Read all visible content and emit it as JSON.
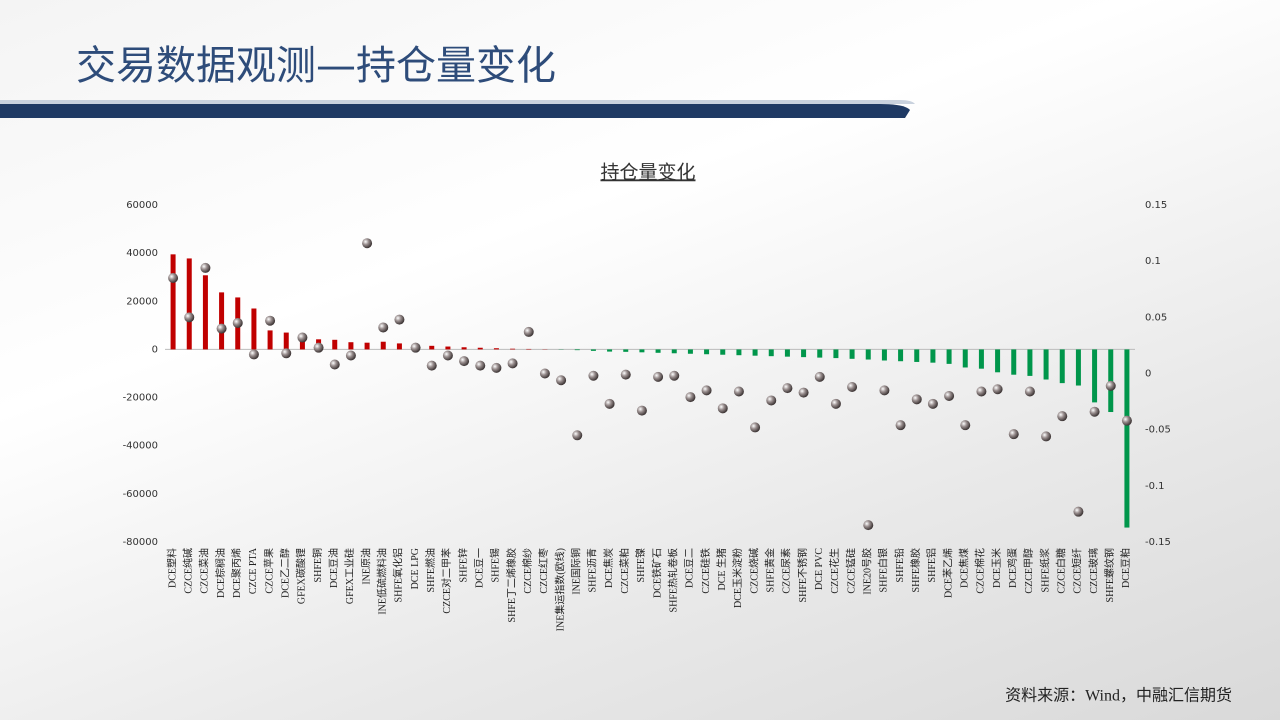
{
  "title": "交易数据观测—持仓量变化",
  "source": "资料来源：Wind，中融汇信期货",
  "chart_data": {
    "type": "bar",
    "title": "持仓量变化",
    "categories": [
      "DCE塑料",
      "CZCE纯碱",
      "CZCE菜油",
      "DCE棕榈油",
      "DCE聚丙烯",
      "CZCE PTA",
      "CZCE苹果",
      "DCE乙二醇",
      "GFEX碳酸锂",
      "SHFE铜",
      "DCE豆油",
      "GFEX工业硅",
      "INE原油",
      "INE低硫燃料油",
      "SHFE氧化铝",
      "DCE LPG",
      "SHFE燃油",
      "CZCE对二甲苯",
      "SHFE锌",
      "DCE豆一",
      "SHFE锡",
      "SHFE丁二烯橡胶",
      "CZCE棉纱",
      "CZCE红枣",
      "INE集运指数(欧线)",
      "INE国际铜",
      "SHFE沥青",
      "DCE焦炭",
      "CZCE菜粕",
      "SHFE镍",
      "DCE铁矿石",
      "SHFE热轧卷板",
      "DCE豆二",
      "CZCE硅铁",
      "DCE 生猪",
      "DCE玉米淀粉",
      "CZCE烧碱",
      "SHFE黄金",
      "CZCE尿素",
      "SHFE不锈钢",
      "DCE PVC",
      "CZCE花生",
      "CZCE锰硅",
      "INE20号胶",
      "SHFE白银",
      "SHFE铅",
      "SHFE橡胶",
      "SHFE铝",
      "DCE苯乙烯",
      "DCE焦煤",
      "CZCE棉花",
      "DCE玉米",
      "DCE鸡蛋",
      "CZCE甲醇",
      "SHFE纸浆",
      "CZCE白糖",
      "CZCE短纤",
      "CZCE玻璃",
      "SHFE螺纹钢",
      "DCE豆粕"
    ],
    "series": [
      {
        "positive_color": "#c00000",
        "negative_color": "#00964b",
        "values": [
          39500,
          37800,
          30800,
          23700,
          21600,
          17000,
          7900,
          7000,
          5800,
          4200,
          4000,
          3000,
          2800,
          3200,
          2500,
          1800,
          1500,
          1200,
          900,
          700,
          500,
          300,
          200,
          100,
          -100,
          -300,
          -600,
          -900,
          -1000,
          -1200,
          -1400,
          -1600,
          -1800,
          -2000,
          -2200,
          -2400,
          -2600,
          -2800,
          -3000,
          -3200,
          -3400,
          -3600,
          -3900,
          -4200,
          -4600,
          -4900,
          -5200,
          -5500,
          -6000,
          -7500,
          -8000,
          -9500,
          -10500,
          -11000,
          -12500,
          -14000,
          -15000,
          -22000,
          -26000,
          -74000
        ]
      },
      {
        "axis": "y2",
        "color": "#8a8a8a",
        "values": [
          0.085,
          0.05,
          0.094,
          0.04,
          0.045,
          0.017,
          0.047,
          0.018,
          0.032,
          0.023,
          0.008,
          0.016,
          0.116,
          0.041,
          0.048,
          0.023,
          0.007,
          0.016,
          0.011,
          0.007,
          0.005,
          0.009,
          0.037,
          0,
          -0.006,
          -0.055,
          -0.002,
          -0.027,
          -0.001,
          -0.033,
          -0.003,
          -0.002,
          -0.021,
          -0.015,
          -0.031,
          -0.016,
          -0.048,
          -0.024,
          -0.013,
          -0.017,
          -0.003,
          -0.027,
          -0.012,
          -0.135,
          -0.015,
          -0.046,
          -0.023,
          -0.027,
          -0.02,
          -0.046,
          -0.016,
          -0.014,
          -0.054,
          -0.016,
          -0.056,
          -0.038,
          -0.123,
          -0.034,
          -0.011,
          -0.042
        ]
      }
    ],
    "ylim": [
      -80000,
      60000
    ],
    "yticks": [
      60000,
      40000,
      20000,
      0,
      -20000,
      -40000,
      -60000,
      -80000
    ],
    "y2lim": [
      -0.15,
      0.15
    ],
    "y2ticks": [
      0.15,
      0.1,
      0.05,
      0,
      -0.05,
      -0.1,
      -0.15
    ],
    "grid": false
  }
}
